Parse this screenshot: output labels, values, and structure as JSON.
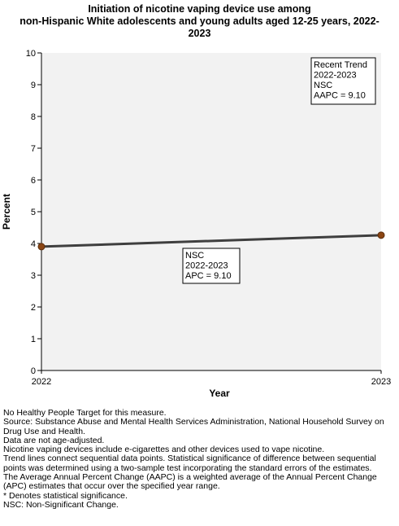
{
  "title_lines": [
    "Initiation of nicotine vaping device use among",
    "non-Hispanic White adolescents and young adults aged 12-25 years, 2022-",
    "2023"
  ],
  "chart_data": {
    "type": "line",
    "x": [
      "2022",
      "2023"
    ],
    "series": [
      {
        "values": [
          3.9,
          4.26
        ],
        "color": "#3f3f3f",
        "marker_color": "#8b4513"
      }
    ],
    "xlabel": "Year",
    "ylabel": "Percent",
    "ylim": [
      0,
      10
    ],
    "yticks": [
      "0",
      "1",
      "2",
      "3",
      "4",
      "5",
      "6",
      "7",
      "8",
      "9",
      "10"
    ],
    "grid": false,
    "plot_background": "#f2f2f2",
    "annotations": [
      {
        "id": "recent-trend",
        "lines": [
          "Recent Trend",
          "2022-2023",
          "NSC",
          "AAPC =  9.10"
        ]
      },
      {
        "id": "segment",
        "lines": [
          "NSC",
          "2022-2023",
          "APC =  9.10"
        ]
      }
    ]
  },
  "notes": [
    "No Healthy People Target for this measure.",
    "Source: Substance Abuse and Mental Health Services Administration, National Household Survey on Drug Use and Health.",
    "Data are not age-adjusted.",
    "Nicotine vaping devices include e-cigarettes and other devices used to vape nicotine.",
    "Trend lines connect sequential data points. Statistical significance of difference between sequential points was determined using a two-sample test incorporating the standard errors of the estimates.",
    "The Average Annual Percent Change (AAPC) is a weighted average of the Annual Percent Change (APC) estimates that occur over the specified year range.",
    "* Denotes statistical significance.",
    "NSC: Non-Significant Change."
  ]
}
